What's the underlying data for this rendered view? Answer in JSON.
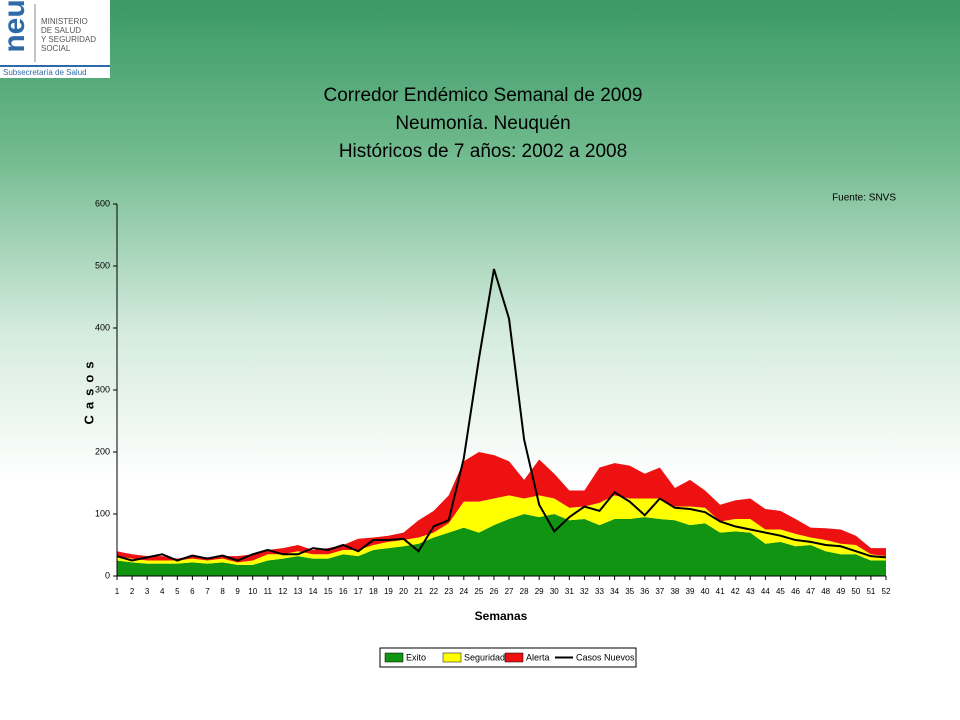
{
  "header": {
    "logo_mark": "neu",
    "ministry": [
      "MINISTERIO",
      "DE SALUD",
      "Y SEGURIDAD",
      "SOCIAL"
    ],
    "subsecretaria": "Subsecretaría de Salud"
  },
  "chart_data": {
    "type": "area",
    "title": [
      "Corredor Endémico Semanal de 2009",
      "Neumonía. Neuquén",
      "Históricos de 7 años: 2002 a 2008"
    ],
    "source": "Fuente: SNVS",
    "x_label": "Semanas",
    "y_label": "Casos",
    "categories": [
      "1",
      "2",
      "3",
      "4",
      "5",
      "6",
      "7",
      "8",
      "9",
      "10",
      "11",
      "12",
      "13",
      "14",
      "15",
      "16",
      "17",
      "18",
      "19",
      "20",
      "21",
      "22",
      "23",
      "24",
      "25",
      "26",
      "27",
      "28",
      "29",
      "30",
      "31",
      "32",
      "33",
      "34",
      "35",
      "36",
      "37",
      "38",
      "39",
      "40",
      "41",
      "42",
      "43",
      "44",
      "45",
      "46",
      "47",
      "48",
      "49",
      "50",
      "51",
      "52"
    ],
    "ylim": [
      0,
      600
    ],
    "yticks": [
      0,
      100,
      200,
      300,
      400,
      500,
      600
    ],
    "stacked": true,
    "legend": "bottom",
    "series": [
      {
        "name": "Exito",
        "type": "area",
        "color": "#119411",
        "values": [
          25,
          22,
          20,
          20,
          20,
          22,
          20,
          22,
          18,
          18,
          25,
          28,
          32,
          28,
          28,
          35,
          32,
          42,
          45,
          48,
          52,
          62,
          70,
          78,
          70,
          82,
          92,
          100,
          95,
          100,
          90,
          92,
          82,
          92,
          92,
          95,
          92,
          90,
          82,
          85,
          70,
          72,
          70,
          52,
          55,
          48,
          50,
          40,
          35,
          35,
          25,
          25
        ]
      },
      {
        "name": "Seguridad",
        "type": "area",
        "color": "#ffff00",
        "values": [
          7,
          6,
          5,
          5,
          5,
          6,
          5,
          6,
          4,
          7,
          10,
          7,
          8,
          7,
          7,
          7,
          10,
          8,
          10,
          10,
          10,
          8,
          15,
          42,
          50,
          43,
          38,
          25,
          35,
          25,
          20,
          20,
          36,
          38,
          33,
          30,
          33,
          22,
          30,
          25,
          18,
          20,
          22,
          23,
          20,
          20,
          12,
          18,
          17,
          15,
          10,
          7
        ]
      },
      {
        "name": "Alerta",
        "type": "area",
        "color": "#ee1111",
        "values": [
          8,
          7,
          7,
          7,
          3,
          4,
          5,
          4,
          10,
          10,
          7,
          10,
          10,
          7,
          10,
          8,
          18,
          12,
          10,
          12,
          28,
          35,
          45,
          65,
          80,
          70,
          55,
          30,
          58,
          40,
          28,
          26,
          57,
          52,
          53,
          40,
          50,
          30,
          43,
          28,
          27,
          30,
          33,
          33,
          30,
          24,
          16,
          19,
          23,
          15,
          10,
          13
        ]
      },
      {
        "name": "Casos Nuevos",
        "type": "line",
        "color": "#000000",
        "values": [
          32,
          25,
          30,
          35,
          25,
          33,
          28,
          33,
          25,
          35,
          42,
          35,
          35,
          45,
          42,
          50,
          40,
          58,
          58,
          60,
          40,
          80,
          90,
          190,
          350,
          495,
          415,
          220,
          115,
          72,
          95,
          112,
          105,
          135,
          120,
          98,
          125,
          110,
          108,
          103,
          88,
          80,
          75,
          70,
          65,
          58,
          55,
          50,
          48,
          40,
          32,
          30
        ]
      }
    ]
  }
}
